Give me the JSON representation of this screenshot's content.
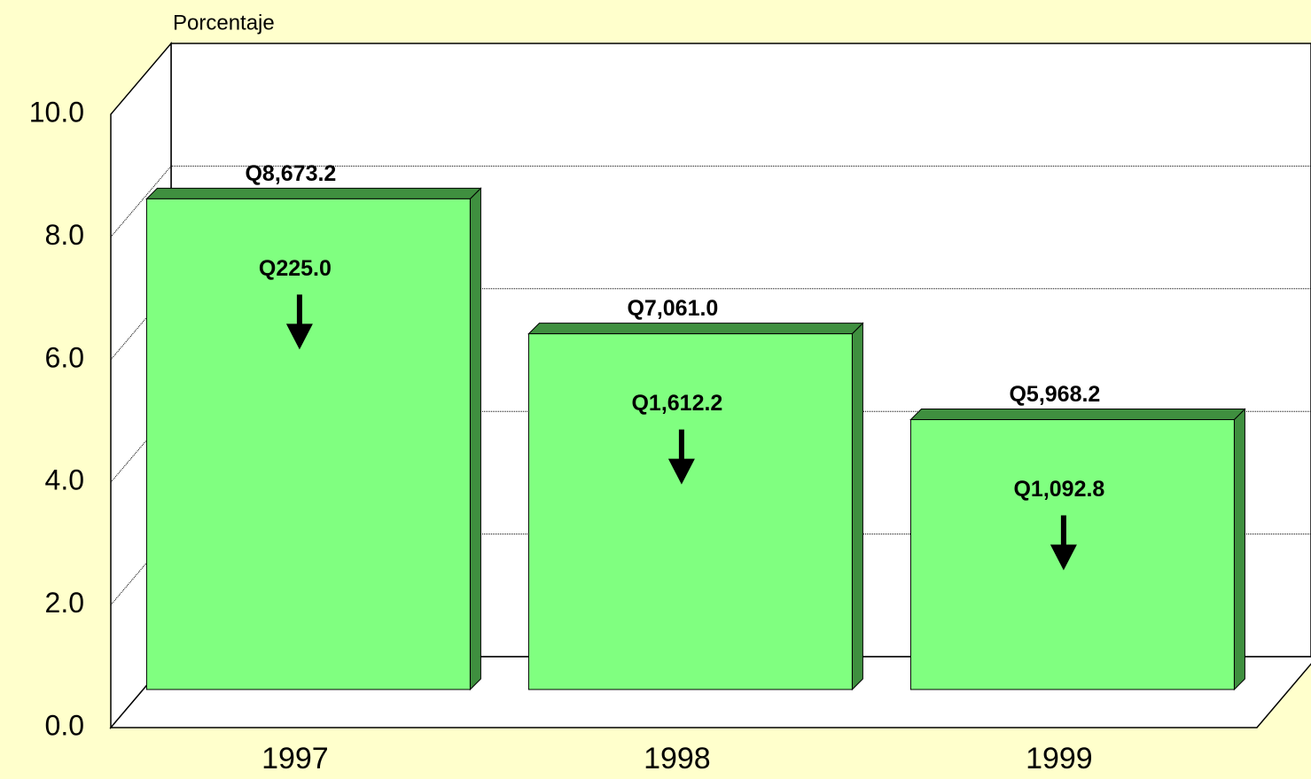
{
  "chart_data": {
    "type": "bar3d",
    "y_axis_title": "Porcentaje",
    "categories": [
      "1997",
      "1998",
      "1999"
    ],
    "values": [
      8.0,
      5.8,
      4.4
    ],
    "amount_labels": [
      "Q8,673.2",
      "Q7,061.0",
      "Q5,968.2"
    ],
    "change_labels": [
      "Q225.0",
      "Q1,612.2",
      "Q1,092.8"
    ],
    "color": "#80ff80",
    "side_color": "#3f8f3f",
    "ylim": [
      0,
      10
    ],
    "yticks": [
      {
        "value": 0,
        "label": "0.0"
      },
      {
        "value": 2,
        "label": "2.0"
      },
      {
        "value": 4,
        "label": "4.0"
      },
      {
        "value": 6,
        "label": "6.0"
      },
      {
        "value": 8,
        "label": "8.0"
      },
      {
        "value": 10,
        "label": "10.0"
      }
    ],
    "grid": true
  }
}
